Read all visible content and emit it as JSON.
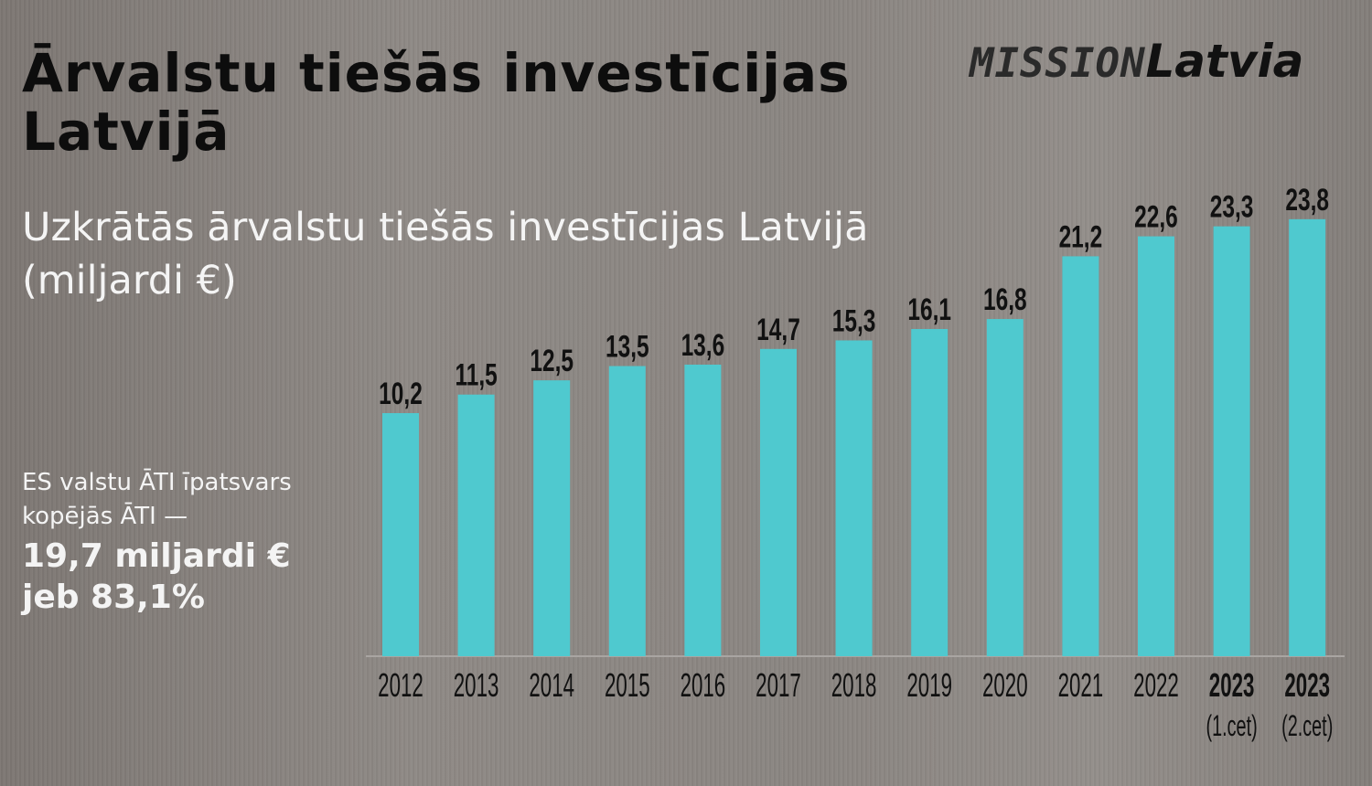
{
  "title": "Ārvalstu tiešās investīcijas Latvijā",
  "logo": {
    "part1": "MISSION",
    "part2": "Latvia"
  },
  "note": {
    "line1": "ES valstu ĀTI īpatsvars",
    "line2": "kopējās ĀTI —",
    "value1": "19,7 miljardi €",
    "value2": "jeb 83,1%"
  },
  "chart_data": {
    "type": "bar",
    "title": "",
    "subtitle": "Uzkrātās ārvalstu tiešās investīcijas Latvijā (miljardi €)",
    "categories": [
      "2012",
      "2013",
      "2014",
      "2015",
      "2016",
      "2017",
      "2018",
      "2019",
      "2020",
      "2021",
      "2022",
      "2023",
      "2023"
    ],
    "category_sublabels": [
      "",
      "",
      "",
      "",
      "",
      "",
      "",
      "",
      "",
      "",
      "",
      "(1.cet)",
      "(2.cet)"
    ],
    "values": [
      10.2,
      11.5,
      12.5,
      13.5,
      13.6,
      14.7,
      15.3,
      16.1,
      16.8,
      21.2,
      22.6,
      23.3,
      23.8
    ],
    "data_labels": [
      "10,2",
      "11,5",
      "12,5",
      "13,5",
      "13,6",
      "14,7",
      "15,3",
      "16,1",
      "16,8",
      "21,2",
      "22,6",
      "23,3",
      "23,8"
    ],
    "bar_color": "#4fc9cf",
    "grid": false
  }
}
